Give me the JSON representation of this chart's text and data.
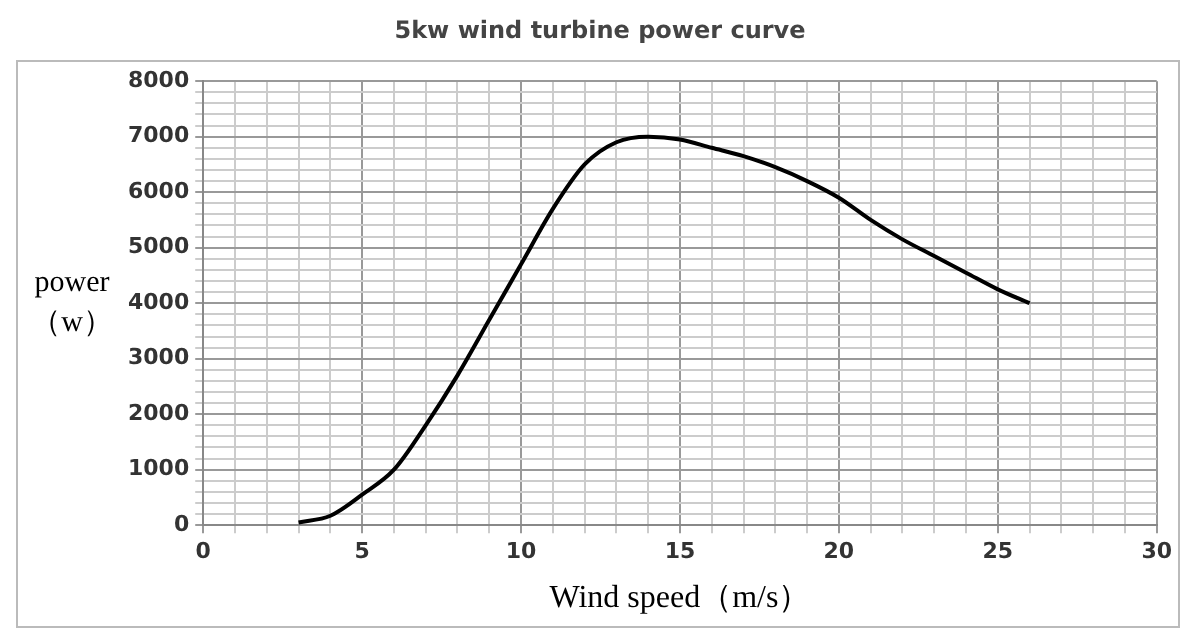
{
  "chart_data": {
    "type": "line",
    "title": "5kw wind turbine power curve",
    "xlabel": "Wind speed（m/s）",
    "ylabel": "power（w）",
    "x": [
      3,
      4,
      5,
      6,
      7,
      8,
      9,
      10,
      11,
      12,
      13,
      14,
      15,
      16,
      17,
      18,
      19,
      20,
      21,
      22,
      23,
      24,
      25,
      26
    ],
    "series": [
      {
        "color": "#000000",
        "values": [
          50,
          170,
          550,
          1000,
          1800,
          2700,
          3700,
          4700,
          5700,
          6500,
          6900,
          7000,
          6950,
          6800,
          6650,
          6450,
          6200,
          5900,
          5500,
          5150,
          4850,
          4550,
          4250,
          4000
        ]
      }
    ],
    "xlim": [
      0,
      30
    ],
    "xticks": [
      0,
      {
        "value": 1,
        "label": null
      },
      {
        "value": 2,
        "label": null
      },
      {
        "value": 3,
        "label": null
      },
      {
        "value": 4,
        "label": null
      },
      5,
      {
        "value": 6,
        "label": null
      },
      {
        "value": 7,
        "label": null
      },
      {
        "value": 8,
        "label": null
      },
      {
        "value": 9,
        "label": null
      },
      10,
      {
        "value": 11,
        "label": null
      },
      {
        "value": 12,
        "label": null
      },
      {
        "value": 13,
        "label": null
      },
      {
        "value": 14,
        "label": null
      },
      15,
      {
        "value": 16,
        "label": null
      },
      {
        "value": 17,
        "label": null
      },
      {
        "value": 18,
        "label": null
      },
      {
        "value": 19,
        "label": null
      },
      20,
      {
        "value": 21,
        "label": null
      },
      {
        "value": 22,
        "label": null
      },
      {
        "value": 23,
        "label": null
      },
      {
        "value": 24,
        "label": null
      },
      25,
      {
        "value": 26,
        "label": null
      },
      {
        "value": 27,
        "label": null
      },
      {
        "value": 28,
        "label": null
      },
      {
        "value": 29,
        "label": null
      },
      30
    ],
    "ylim": [
      0,
      8000
    ],
    "yticks": [
      0,
      {
        "value": 200,
        "label": null
      },
      {
        "value": 400,
        "label": null
      },
      {
        "value": 600,
        "label": null
      },
      {
        "value": 800,
        "label": null
      },
      1000,
      {
        "value": 1200,
        "label": null
      },
      {
        "value": 1400,
        "label": null
      },
      {
        "value": 1600,
        "label": null
      },
      {
        "value": 1800,
        "label": null
      },
      2000,
      {
        "value": 2200,
        "label": null
      },
      {
        "value": 2400,
        "label": null
      },
      {
        "value": 2600,
        "label": null
      },
      {
        "value": 2800,
        "label": null
      },
      3000,
      {
        "value": 3200,
        "label": null
      },
      {
        "value": 3400,
        "label": null
      },
      {
        "value": 3600,
        "label": null
      },
      {
        "value": 3800,
        "label": null
      },
      4000,
      {
        "value": 4200,
        "label": null
      },
      {
        "value": 4400,
        "label": null
      },
      {
        "value": 4600,
        "label": null
      },
      {
        "value": 4800,
        "label": null
      },
      5000,
      {
        "value": 5200,
        "label": null
      },
      {
        "value": 5400,
        "label": null
      },
      {
        "value": 5600,
        "label": null
      },
      {
        "value": 5800,
        "label": null
      },
      6000,
      {
        "value": 6200,
        "label": null
      },
      {
        "value": 6400,
        "label": null
      },
      {
        "value": 6600,
        "label": null
      },
      {
        "value": 6800,
        "label": null
      },
      7000,
      {
        "value": 7200,
        "label": null
      },
      {
        "value": 7400,
        "label": null
      },
      {
        "value": 7600,
        "label": null
      },
      {
        "value": 7800,
        "label": null
      },
      8000
    ],
    "grid": true,
    "legend": false,
    "marker": "none",
    "line_style": "solid"
  }
}
